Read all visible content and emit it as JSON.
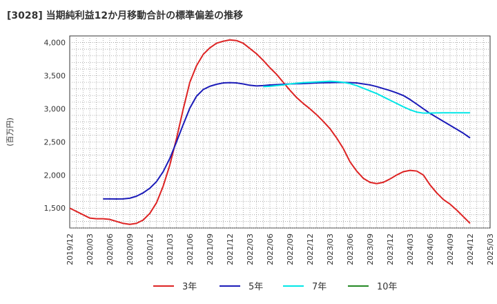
{
  "chart_data": {
    "type": "line",
    "title": "[3028]  当期純利益12か月移動合計の標準偏差の推移",
    "ylabel": "(百万円)",
    "xlabel": "",
    "ylim": [
      1200,
      4100
    ],
    "yticks": [
      1500,
      2000,
      2500,
      3000,
      3500,
      4000
    ],
    "ytick_labels": [
      "1,500",
      "2,000",
      "2,500",
      "3,000",
      "3,500",
      "4,000"
    ],
    "xticks": [
      "2019/12",
      "2020/03",
      "2020/06",
      "2020/09",
      "2020/12",
      "2021/03",
      "2021/06",
      "2021/09",
      "2021/12",
      "2022/03",
      "2022/06",
      "2022/09",
      "2022/12",
      "2023/03",
      "2023/06",
      "2023/09",
      "2023/12",
      "2024/03",
      "2024/06",
      "2024/09",
      "2024/12",
      "2025/03"
    ],
    "grid": true,
    "legend_position": "bottom",
    "series": [
      {
        "name": "3年",
        "color": "#dd2222",
        "points": [
          [
            "2019/12",
            1500
          ],
          [
            "2020/01",
            1450
          ],
          [
            "2020/02",
            1400
          ],
          [
            "2020/03",
            1350
          ],
          [
            "2020/04",
            1340
          ],
          [
            "2020/05",
            1340
          ],
          [
            "2020/06",
            1330
          ],
          [
            "2020/07",
            1300
          ],
          [
            "2020/08",
            1270
          ],
          [
            "2020/09",
            1255
          ],
          [
            "2020/10",
            1270
          ],
          [
            "2020/11",
            1320
          ],
          [
            "2020/12",
            1420
          ],
          [
            "2021/01",
            1580
          ],
          [
            "2021/02",
            1830
          ],
          [
            "2021/03",
            2150
          ],
          [
            "2021/04",
            2550
          ],
          [
            "2021/05",
            2990
          ],
          [
            "2021/06",
            3400
          ],
          [
            "2021/07",
            3650
          ],
          [
            "2021/08",
            3820
          ],
          [
            "2021/09",
            3920
          ],
          [
            "2021/10",
            3990
          ],
          [
            "2021/11",
            4020
          ],
          [
            "2021/12",
            4040
          ],
          [
            "2022/01",
            4030
          ],
          [
            "2022/02",
            3990
          ],
          [
            "2022/03",
            3910
          ],
          [
            "2022/04",
            3830
          ],
          [
            "2022/05",
            3730
          ],
          [
            "2022/06",
            3620
          ],
          [
            "2022/07",
            3520
          ],
          [
            "2022/08",
            3400
          ],
          [
            "2022/09",
            3280
          ],
          [
            "2022/10",
            3170
          ],
          [
            "2022/11",
            3080
          ],
          [
            "2022/12",
            3000
          ],
          [
            "2023/01",
            2910
          ],
          [
            "2023/02",
            2810
          ],
          [
            "2023/03",
            2700
          ],
          [
            "2023/04",
            2560
          ],
          [
            "2023/05",
            2400
          ],
          [
            "2023/06",
            2200
          ],
          [
            "2023/07",
            2060
          ],
          [
            "2023/08",
            1950
          ],
          [
            "2023/09",
            1890
          ],
          [
            "2023/10",
            1870
          ],
          [
            "2023/11",
            1890
          ],
          [
            "2023/12",
            1940
          ],
          [
            "2024/01",
            2000
          ],
          [
            "2024/02",
            2050
          ],
          [
            "2024/03",
            2070
          ],
          [
            "2024/04",
            2060
          ],
          [
            "2024/05",
            2000
          ],
          [
            "2024/06",
            1850
          ],
          [
            "2024/07",
            1730
          ],
          [
            "2024/08",
            1630
          ],
          [
            "2024/09",
            1560
          ],
          [
            "2024/10",
            1470
          ],
          [
            "2024/11",
            1370
          ],
          [
            "2024/12",
            1270
          ]
        ]
      },
      {
        "name": "5年",
        "color": "#1a1ab8",
        "points": [
          [
            "2020/05",
            1640
          ],
          [
            "2020/06",
            1640
          ],
          [
            "2020/07",
            1638
          ],
          [
            "2020/08",
            1640
          ],
          [
            "2020/09",
            1650
          ],
          [
            "2020/10",
            1680
          ],
          [
            "2020/11",
            1730
          ],
          [
            "2020/12",
            1800
          ],
          [
            "2021/01",
            1900
          ],
          [
            "2021/02",
            2050
          ],
          [
            "2021/03",
            2250
          ],
          [
            "2021/04",
            2500
          ],
          [
            "2021/05",
            2760
          ],
          [
            "2021/06",
            3010
          ],
          [
            "2021/07",
            3190
          ],
          [
            "2021/08",
            3290
          ],
          [
            "2021/09",
            3340
          ],
          [
            "2021/10",
            3370
          ],
          [
            "2021/11",
            3390
          ],
          [
            "2021/12",
            3395
          ],
          [
            "2022/01",
            3390
          ],
          [
            "2022/02",
            3375
          ],
          [
            "2022/03",
            3355
          ],
          [
            "2022/04",
            3345
          ],
          [
            "2022/05",
            3350
          ],
          [
            "2022/06",
            3360
          ],
          [
            "2022/07",
            3365
          ],
          [
            "2022/08",
            3370
          ],
          [
            "2022/09",
            3375
          ],
          [
            "2022/10",
            3378
          ],
          [
            "2022/11",
            3380
          ],
          [
            "2022/12",
            3385
          ],
          [
            "2023/01",
            3390
          ],
          [
            "2023/02",
            3393
          ],
          [
            "2023/03",
            3395
          ],
          [
            "2023/04",
            3397
          ],
          [
            "2023/05",
            3398
          ],
          [
            "2023/06",
            3395
          ],
          [
            "2023/07",
            3390
          ],
          [
            "2023/08",
            3375
          ],
          [
            "2023/09",
            3360
          ],
          [
            "2023/10",
            3335
          ],
          [
            "2023/11",
            3305
          ],
          [
            "2023/12",
            3275
          ],
          [
            "2024/01",
            3240
          ],
          [
            "2024/02",
            3200
          ],
          [
            "2024/03",
            3140
          ],
          [
            "2024/04",
            3070
          ],
          [
            "2024/05",
            3000
          ],
          [
            "2024/06",
            2930
          ],
          [
            "2024/07",
            2870
          ],
          [
            "2024/08",
            2810
          ],
          [
            "2024/09",
            2750
          ],
          [
            "2024/10",
            2690
          ],
          [
            "2024/11",
            2630
          ],
          [
            "2024/12",
            2560
          ]
        ]
      },
      {
        "name": "7年",
        "color": "#00e6e6",
        "points": [
          [
            "2022/05",
            3335
          ],
          [
            "2022/06",
            3340
          ],
          [
            "2022/07",
            3350
          ],
          [
            "2022/08",
            3360
          ],
          [
            "2022/09",
            3375
          ],
          [
            "2022/10",
            3385
          ],
          [
            "2022/11",
            3395
          ],
          [
            "2022/12",
            3400
          ],
          [
            "2023/01",
            3405
          ],
          [
            "2023/02",
            3410
          ],
          [
            "2023/03",
            3415
          ],
          [
            "2023/04",
            3410
          ],
          [
            "2023/05",
            3400
          ],
          [
            "2023/06",
            3380
          ],
          [
            "2023/07",
            3350
          ],
          [
            "2023/08",
            3310
          ],
          [
            "2023/09",
            3270
          ],
          [
            "2023/10",
            3230
          ],
          [
            "2023/11",
            3180
          ],
          [
            "2023/12",
            3130
          ],
          [
            "2024/01",
            3080
          ],
          [
            "2024/02",
            3030
          ],
          [
            "2024/03",
            2985
          ],
          [
            "2024/04",
            2950
          ],
          [
            "2024/05",
            2935
          ],
          [
            "2024/06",
            2935
          ],
          [
            "2024/07",
            2938
          ],
          [
            "2024/08",
            2940
          ],
          [
            "2024/09",
            2940
          ],
          [
            "2024/10",
            2940
          ],
          [
            "2024/11",
            2940
          ],
          [
            "2024/12",
            2940
          ]
        ]
      },
      {
        "name": "10年",
        "color": "#228822",
        "points": []
      }
    ]
  }
}
